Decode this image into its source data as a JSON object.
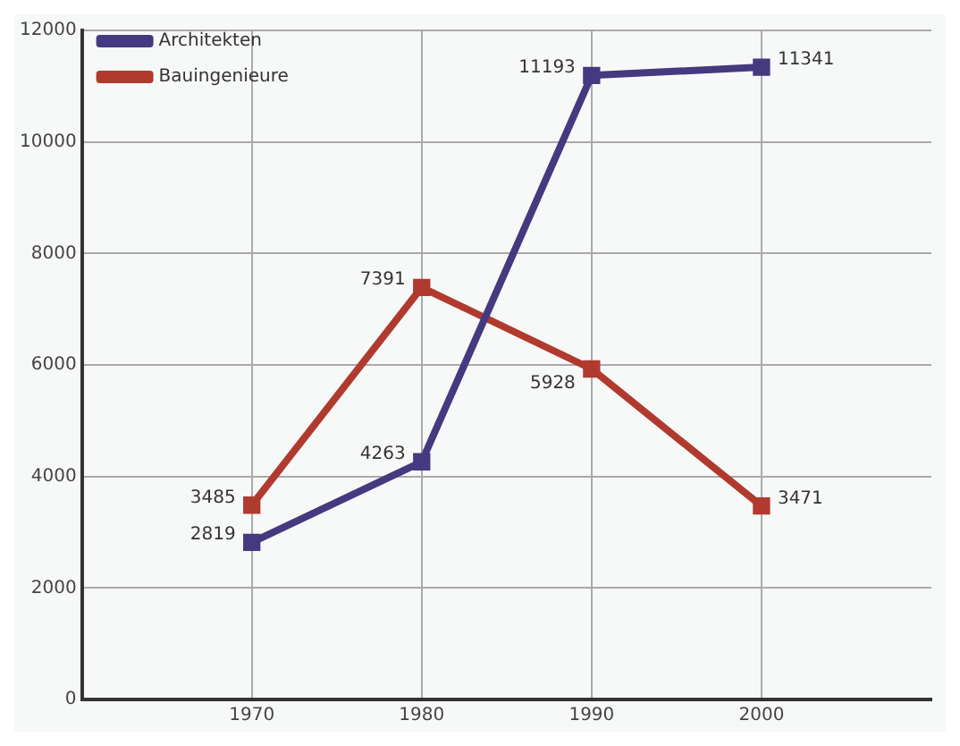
{
  "chart_data": {
    "type": "line",
    "x": [
      1970,
      1980,
      1990,
      2000
    ],
    "xlim": [
      1960,
      2010
    ],
    "xticks": [
      1970,
      1980,
      1990,
      2000
    ],
    "ylim": [
      0,
      12000
    ],
    "yticks": [
      0,
      2000,
      4000,
      6000,
      8000,
      10000,
      12000
    ],
    "grid": true,
    "legend": "top left",
    "marker": "square",
    "line_style": "solid",
    "data_labels": true,
    "series": [
      {
        "name": "Architekten",
        "color": "#45397f",
        "values": [
          2819,
          4263,
          11193,
          11341
        ]
      },
      {
        "name": "Bauingenieure",
        "color": "#b03a2e",
        "values": [
          3485,
          7391,
          5928,
          3471
        ]
      }
    ]
  }
}
